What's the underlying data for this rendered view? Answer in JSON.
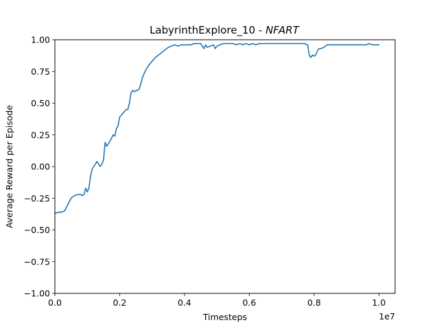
{
  "chart_data": {
    "type": "line",
    "title": "LabyrinthExplore_10 - ",
    "title_italic": "NFART",
    "xlabel": "Timesteps",
    "ylabel": "Average Reward per Episode",
    "x_offset_label": "1e7",
    "xlim": [
      0,
      10500000
    ],
    "ylim": [
      -1.0,
      1.0
    ],
    "x_ticks": [
      0,
      2000000,
      4000000,
      6000000,
      8000000,
      10000000
    ],
    "x_tick_labels": [
      "0.0",
      "0.2",
      "0.4",
      "0.6",
      "0.8",
      "1.0"
    ],
    "y_ticks": [
      -1.0,
      -0.75,
      -0.5,
      -0.25,
      0.0,
      0.25,
      0.5,
      0.75,
      1.0
    ],
    "y_tick_labels": [
      "−1.00",
      "−0.75",
      "−0.50",
      "−0.25",
      "0.00",
      "0.25",
      "0.50",
      "0.75",
      "1.00"
    ],
    "grid": false,
    "legend": "none",
    "line_color": "#1f77b4",
    "series": [
      {
        "x": [
          0,
          100000,
          200000,
          300000,
          400000,
          500000,
          600000,
          700000,
          800000,
          850000,
          900000,
          950000,
          1000000,
          1050000,
          1100000,
          1150000,
          1200000,
          1300000,
          1400000,
          1450000,
          1500000,
          1550000,
          1600000,
          1650000,
          1700000,
          1800000,
          1850000,
          1900000,
          1950000,
          2000000,
          2100000,
          2200000,
          2250000,
          2300000,
          2350000,
          2400000,
          2450000,
          2500000,
          2550000,
          2600000,
          2650000,
          2700000,
          2800000,
          2900000,
          3000000,
          3100000,
          3200000,
          3300000,
          3400000,
          3500000,
          3600000,
          3700000,
          3800000,
          3900000,
          4000000,
          4100000,
          4200000,
          4300000,
          4400000,
          4500000,
          4600000,
          4650000,
          4700000,
          4800000,
          4900000,
          4950000,
          5000000,
          5100000,
          5200000,
          5300000,
          5400000,
          5500000,
          5600000,
          5700000,
          5800000,
          5900000,
          6000000,
          6100000,
          6200000,
          6300000,
          6400000,
          6500000,
          6600000,
          6700000,
          6800000,
          6900000,
          7000000,
          7100000,
          7200000,
          7300000,
          7400000,
          7500000,
          7600000,
          7700000,
          7800000,
          7850000,
          7900000,
          7950000,
          8000000,
          8050000,
          8100000,
          8150000,
          8200000,
          8300000,
          8400000,
          8500000,
          8600000,
          8700000,
          8800000,
          8900000,
          9000000,
          9100000,
          9200000,
          9300000,
          9400000,
          9500000,
          9600000,
          9700000,
          9800000,
          9900000,
          10000000
        ],
        "y": [
          -0.37,
          -0.36,
          -0.36,
          -0.35,
          -0.3,
          -0.25,
          -0.23,
          -0.22,
          -0.22,
          -0.23,
          -0.22,
          -0.17,
          -0.2,
          -0.17,
          -0.08,
          -0.02,
          0.0,
          0.04,
          0.0,
          0.02,
          0.05,
          0.19,
          0.16,
          0.18,
          0.2,
          0.25,
          0.24,
          0.3,
          0.32,
          0.39,
          0.42,
          0.45,
          0.45,
          0.5,
          0.58,
          0.6,
          0.59,
          0.6,
          0.6,
          0.61,
          0.65,
          0.7,
          0.76,
          0.8,
          0.83,
          0.86,
          0.88,
          0.9,
          0.92,
          0.94,
          0.95,
          0.96,
          0.95,
          0.96,
          0.96,
          0.96,
          0.96,
          0.97,
          0.97,
          0.97,
          0.93,
          0.96,
          0.94,
          0.95,
          0.96,
          0.93,
          0.95,
          0.96,
          0.97,
          0.97,
          0.97,
          0.97,
          0.96,
          0.97,
          0.96,
          0.97,
          0.96,
          0.97,
          0.96,
          0.97,
          0.97,
          0.97,
          0.97,
          0.97,
          0.97,
          0.97,
          0.97,
          0.97,
          0.97,
          0.97,
          0.97,
          0.97,
          0.97,
          0.97,
          0.96,
          0.88,
          0.86,
          0.88,
          0.87,
          0.88,
          0.91,
          0.93,
          0.93,
          0.94,
          0.96,
          0.96,
          0.96,
          0.96,
          0.96,
          0.96,
          0.96,
          0.96,
          0.96,
          0.96,
          0.96,
          0.96,
          0.96,
          0.97,
          0.96,
          0.96,
          0.96
        ]
      }
    ]
  }
}
